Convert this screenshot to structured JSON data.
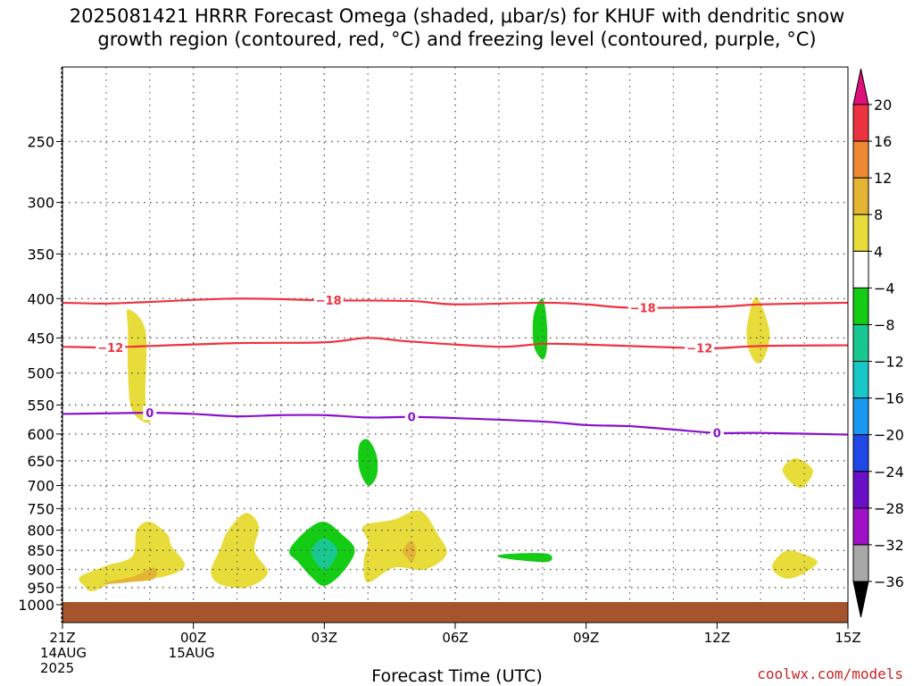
{
  "title": {
    "line1": "2025081421 HRRR Forecast Omega (shaded, μbar/s) for KHUF with dendritic snow",
    "line2": "growth region (contoured, red, °C) and freezing level (contoured, purple, °C)"
  },
  "footer": {
    "xlabel": "Forecast Time (UTC)",
    "credit": "coolwx.com/models"
  },
  "chart_data": {
    "type": "heatmap",
    "xlabel": "Forecast Time (UTC)",
    "ylabel": "",
    "x_range_hours": [
      0,
      18
    ],
    "y_range_hpa": [
      1000,
      200
    ],
    "y_ticks": [
      250,
      300,
      350,
      400,
      450,
      500,
      550,
      600,
      650,
      700,
      750,
      800,
      850,
      900,
      950,
      1000
    ],
    "x_ticks": [
      {
        "hour": 0,
        "lines": [
          "21Z",
          "14AUG",
          "2025"
        ]
      },
      {
        "hour": 3,
        "lines": [
          "00Z",
          "15AUG"
        ]
      },
      {
        "hour": 6,
        "lines": [
          "03Z"
        ]
      },
      {
        "hour": 9,
        "lines": [
          "06Z"
        ]
      },
      {
        "hour": 12,
        "lines": [
          "09Z"
        ]
      },
      {
        "hour": 15,
        "lines": [
          "12Z"
        ]
      },
      {
        "hour": 18,
        "lines": [
          "15Z"
        ]
      }
    ],
    "colorbar": {
      "labels": [
        "20",
        "16",
        "12",
        "8",
        "4",
        "−4",
        "−8",
        "−12",
        "−16",
        "−20",
        "−24",
        "−28",
        "−32",
        "−36"
      ],
      "colors": [
        "#ee3340",
        "#ee8833",
        "#e4b433",
        "#e8dc3a",
        "#ffffff",
        "#14cc14",
        "#18c890",
        "#18c8c8",
        "#1898f0",
        "#2048e8",
        "#6a10c8",
        "#a010c8",
        "#a8a8a8"
      ],
      "top_arrow_color": "#e0107a",
      "bottom_arrow_color": "#000000"
    },
    "contours": [
      {
        "name": "-18",
        "color": "#ee3340",
        "points": [
          [
            0,
            405
          ],
          [
            1,
            406
          ],
          [
            2,
            404
          ],
          [
            4,
            400
          ],
          [
            6,
            402
          ],
          [
            8,
            403
          ],
          [
            9,
            407
          ],
          [
            11,
            405
          ],
          [
            12,
            407
          ],
          [
            13,
            411
          ],
          [
            15,
            410
          ],
          [
            16,
            407
          ],
          [
            18,
            405
          ]
        ],
        "labels": [
          {
            "hour": 6.1,
            "text": "−18"
          },
          {
            "hour": 13.3,
            "text": "−18"
          }
        ]
      },
      {
        "name": "-12",
        "color": "#ee3340",
        "points": [
          [
            0,
            462
          ],
          [
            1,
            463
          ],
          [
            2,
            461
          ],
          [
            4,
            457
          ],
          [
            6,
            456
          ],
          [
            7,
            450
          ],
          [
            8,
            455
          ],
          [
            10,
            462
          ],
          [
            11,
            458
          ],
          [
            12,
            459
          ],
          [
            14,
            463
          ],
          [
            15,
            464
          ],
          [
            16,
            461
          ],
          [
            18,
            460
          ]
        ],
        "labels": [
          {
            "hour": 1.1,
            "text": "−12"
          },
          {
            "hour": 14.6,
            "text": "−12"
          }
        ]
      },
      {
        "name": "0",
        "color": "#8811cc",
        "points": [
          [
            0,
            565
          ],
          [
            1,
            564
          ],
          [
            2,
            563
          ],
          [
            3,
            565
          ],
          [
            4,
            569
          ],
          [
            5,
            567
          ],
          [
            6,
            567
          ],
          [
            7,
            571
          ],
          [
            8,
            570
          ],
          [
            9,
            572
          ],
          [
            11,
            578
          ],
          [
            12,
            584
          ],
          [
            13,
            586
          ],
          [
            14,
            592
          ],
          [
            15,
            598
          ],
          [
            16,
            598
          ],
          [
            18,
            601
          ]
        ],
        "labels": [
          {
            "hour": 2.0,
            "text": "0"
          },
          {
            "hour": 8.0,
            "text": "0"
          },
          {
            "hour": 15.0,
            "text": "0"
          }
        ]
      }
    ],
    "omega_regions": [
      {
        "level": 4,
        "color": "#e8dc3a",
        "pts": [
          [
            1.5,
            413
          ],
          [
            1.9,
            440
          ],
          [
            1.9,
            540
          ],
          [
            2.0,
            580
          ],
          [
            1.6,
            560
          ],
          [
            1.5,
            500
          ],
          [
            1.5,
            440
          ]
        ]
      },
      {
        "level": 4,
        "color": "#e8dc3a",
        "pts": [
          [
            0.5,
            945
          ],
          [
            0.4,
            920
          ],
          [
            1.0,
            890
          ],
          [
            1.6,
            865
          ],
          [
            1.7,
            800
          ],
          [
            2.0,
            780
          ],
          [
            2.4,
            810
          ],
          [
            2.5,
            840
          ],
          [
            2.8,
            890
          ],
          [
            2.3,
            920
          ],
          [
            1.3,
            930
          ],
          [
            0.7,
            960
          ]
        ]
      },
      {
        "level": 8,
        "color": "#e4b433",
        "pts": [
          [
            1.0,
            935
          ],
          [
            1.6,
            920
          ],
          [
            2.1,
            895
          ],
          [
            2.1,
            925
          ],
          [
            1.5,
            935
          ],
          [
            1.0,
            940
          ]
        ]
      },
      {
        "level": 4,
        "color": "#e8dc3a",
        "pts": [
          [
            3.4,
            905
          ],
          [
            3.6,
            850
          ],
          [
            3.8,
            800
          ],
          [
            4.2,
            760
          ],
          [
            4.5,
            790
          ],
          [
            4.4,
            850
          ],
          [
            4.7,
            910
          ],
          [
            4.2,
            950
          ],
          [
            3.6,
            940
          ]
        ]
      },
      {
        "level": -4,
        "color": "#14cc14",
        "pts": [
          [
            5.2,
            850
          ],
          [
            5.6,
            800
          ],
          [
            6.0,
            780
          ],
          [
            6.4,
            810
          ],
          [
            6.7,
            850
          ],
          [
            6.4,
            910
          ],
          [
            6.0,
            945
          ],
          [
            5.7,
            920
          ],
          [
            5.4,
            880
          ]
        ]
      },
      {
        "level": -8,
        "color": "#18c890",
        "pts": [
          [
            5.7,
            850
          ],
          [
            6.0,
            820
          ],
          [
            6.3,
            850
          ],
          [
            6.1,
            895
          ],
          [
            5.9,
            895
          ]
        ]
      },
      {
        "level": -4,
        "color": "#14cc14",
        "pts": [
          [
            6.8,
            620
          ],
          [
            7.0,
            610
          ],
          [
            7.2,
            640
          ],
          [
            7.2,
            680
          ],
          [
            7.0,
            700
          ],
          [
            6.8,
            665
          ]
        ]
      },
      {
        "level": 4,
        "color": "#e8dc3a",
        "pts": [
          [
            6.9,
            790
          ],
          [
            7.6,
            775
          ],
          [
            8.2,
            755
          ],
          [
            8.6,
            810
          ],
          [
            8.8,
            860
          ],
          [
            8.3,
            900
          ],
          [
            7.6,
            895
          ],
          [
            7.0,
            935
          ],
          [
            6.9,
            880
          ],
          [
            7.0,
            830
          ]
        ]
      },
      {
        "level": 8,
        "color": "#e4b433",
        "pts": [
          [
            7.8,
            850
          ],
          [
            8.0,
            825
          ],
          [
            8.1,
            855
          ],
          [
            8.0,
            880
          ],
          [
            7.9,
            870
          ]
        ]
      },
      {
        "level": -4,
        "color": "#14cc14",
        "pts": [
          [
            10.1,
            860
          ],
          [
            11.1,
            858
          ],
          [
            11.1,
            880
          ],
          [
            10.1,
            870
          ]
        ]
      },
      {
        "level": -4,
        "color": "#14cc14",
        "pts": [
          [
            10.8,
            420
          ],
          [
            11.0,
            400
          ],
          [
            11.1,
            430
          ],
          [
            11.1,
            465
          ],
          [
            11.0,
            480
          ],
          [
            10.8,
            460
          ]
        ]
      },
      {
        "level": 4,
        "color": "#e8dc3a",
        "pts": [
          [
            15.7,
            430
          ],
          [
            15.9,
            398
          ],
          [
            16.2,
            440
          ],
          [
            16.1,
            475
          ],
          [
            15.9,
            485
          ],
          [
            15.7,
            460
          ]
        ]
      },
      {
        "level": 4,
        "color": "#e8dc3a",
        "pts": [
          [
            16.5,
            670
          ],
          [
            16.8,
            645
          ],
          [
            17.2,
            670
          ],
          [
            16.9,
            705
          ]
        ]
      },
      {
        "level": 4,
        "color": "#e8dc3a",
        "pts": [
          [
            16.3,
            880
          ],
          [
            16.6,
            850
          ],
          [
            17.0,
            860
          ],
          [
            17.3,
            880
          ],
          [
            17.0,
            910
          ],
          [
            16.6,
            925
          ],
          [
            16.3,
            905
          ]
        ]
      }
    ],
    "ground_color": "#a5542c"
  }
}
